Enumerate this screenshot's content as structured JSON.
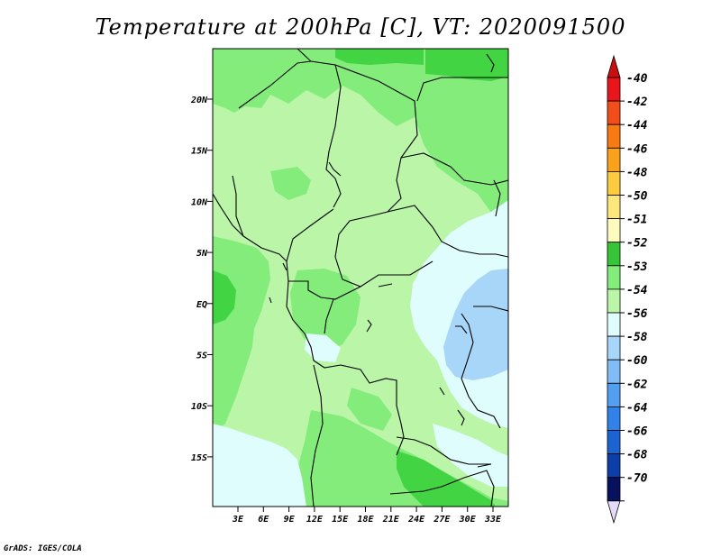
{
  "title": "Temperature at 200hPa [C], VT: 2020091500",
  "footer": "GrADS: IGES/COLA",
  "colors": {
    "lightest_green": "#baf5a8",
    "mid_green": "#84ec7a",
    "dark_green": "#42d442",
    "pale_cyan": "#e0fdfd",
    "light_blue": "#a8d6f8",
    "border": "#000000"
  },
  "map": {
    "lat_labels": [
      "20N",
      "15N",
      "10N",
      "5N",
      "EQ",
      "5S",
      "10S",
      "15S"
    ],
    "lon_labels": [
      "3E",
      "6E",
      "9E",
      "12E",
      "15E",
      "18E",
      "21E",
      "24E",
      "27E",
      "30E",
      "33E"
    ]
  },
  "legend": {
    "entries": [
      {
        "label": "-40",
        "color": "#e8161b"
      },
      {
        "label": "-42",
        "color": "#f24d1a"
      },
      {
        "label": "-44",
        "color": "#f77a12"
      },
      {
        "label": "-46",
        "color": "#fba21d"
      },
      {
        "label": "-48",
        "color": "#fccb3f"
      },
      {
        "label": "-50",
        "color": "#fde77d"
      },
      {
        "label": "-51",
        "color": "#fffbbf"
      },
      {
        "label": "-52",
        "color": "#38c438"
      },
      {
        "label": "-53",
        "color": "#84ec7a"
      },
      {
        "label": "-54",
        "color": "#baf5a8"
      },
      {
        "label": "-56",
        "color": "#e0fdfd"
      },
      {
        "label": "-58",
        "color": "#a8d6f8"
      },
      {
        "label": "-60",
        "color": "#80bdf6"
      },
      {
        "label": "-62",
        "color": "#539ff0"
      },
      {
        "label": "-64",
        "color": "#3182e8"
      },
      {
        "label": "-66",
        "color": "#1c64d2"
      },
      {
        "label": "-68",
        "color": "#0b3ea6"
      },
      {
        "label": "-70",
        "color": "#08115e"
      }
    ],
    "top_arrow_color": "#c81010",
    "bottom_arrow_color": "#e3dbf8"
  }
}
